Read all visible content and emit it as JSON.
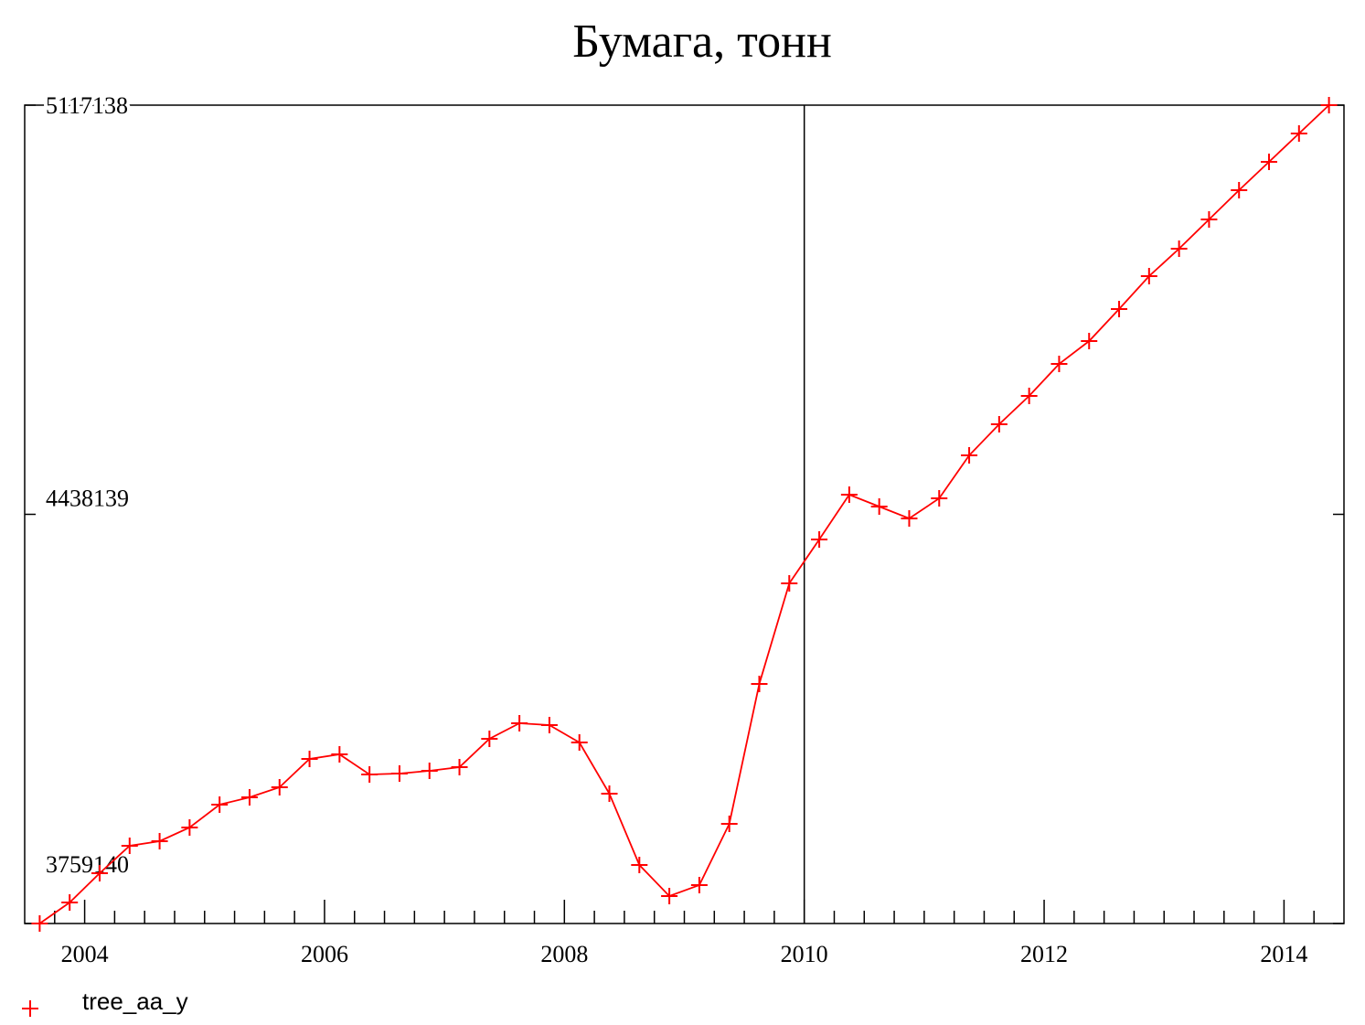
{
  "chart_data": {
    "type": "line",
    "title": "Бумага, тонн",
    "x": [
      2003.625,
      2003.875,
      2004.125,
      2004.375,
      2004.625,
      2004.875,
      2005.125,
      2005.375,
      2005.625,
      2005.875,
      2006.125,
      2006.375,
      2006.625,
      2006.875,
      2007.125,
      2007.375,
      2007.625,
      2007.875,
      2008.125,
      2008.375,
      2008.625,
      2008.875,
      2009.125,
      2009.375,
      2009.625,
      2009.875,
      2010.125,
      2010.375,
      2010.625,
      2010.875,
      2011.125,
      2011.375,
      2011.625,
      2011.875,
      2012.125,
      2012.375,
      2012.625,
      2012.875,
      2013.125,
      2013.375,
      2013.625,
      2013.875,
      2014.125,
      2014.375
    ],
    "series": [
      {
        "name": "tree_aa_y",
        "color": "#ff0000",
        "values": [
          3759140,
          3794040,
          3842590,
          3888110,
          3895700,
          3918460,
          3956390,
          3968530,
          3985220,
          4032260,
          4039850,
          4006470,
          4008000,
          4012530,
          4018600,
          4065640,
          4091430,
          4088400,
          4059570,
          3974600,
          3856250,
          3804660,
          3822870,
          3924530,
          4156670,
          4323570,
          4396400,
          4470750,
          4451020,
          4431290,
          4464670,
          4535980,
          4587570,
          4634610,
          4687710,
          4725640,
          4778750,
          4833370,
          4878890,
          4927440,
          4976000,
          5023030,
          5070070,
          5117138
        ]
      }
    ],
    "xlim": [
      2003.5,
      2014.5
    ],
    "xticks": [
      2004,
      2006,
      2008,
      2010,
      2012,
      2014
    ],
    "xminorticks": [
      2003.75,
      2004.25,
      2004.5,
      2004.75,
      2005,
      2005.25,
      2005.5,
      2005.75,
      2006.25,
      2006.5,
      2006.75,
      2007,
      2007.25,
      2007.5,
      2007.75,
      2008.25,
      2008.5,
      2008.75,
      2009,
      2009.25,
      2009.5,
      2009.75,
      2010.25,
      2010.5,
      2010.75,
      2011,
      2011.25,
      2011.5,
      2011.75,
      2012.25,
      2012.5,
      2012.75,
      2013,
      2013.25,
      2013.5,
      2013.75,
      2014.25
    ],
    "vline": 2010,
    "ylim": [
      3759140,
      5117138
    ],
    "yticks": [
      3759140,
      4438139,
      5117138
    ]
  }
}
